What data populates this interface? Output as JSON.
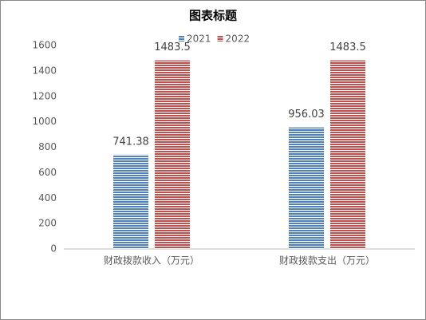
{
  "chart_data": {
    "type": "bar",
    "title": "图表标题",
    "categories": [
      "财政拨款收入（万元）",
      "财政拨款支出（万元）"
    ],
    "series": [
      {
        "name": "2021",
        "color": "#4f81bd",
        "values": [
          741.38,
          956.03
        ]
      },
      {
        "name": "2022",
        "color": "#c0504d",
        "values": [
          1483.5,
          1483.5
        ]
      }
    ],
    "ylim": [
      0,
      1600
    ],
    "yticks": [
      0,
      200,
      400,
      600,
      800,
      1000,
      1200,
      1400,
      1600
    ],
    "grid": false,
    "legend": "top"
  }
}
